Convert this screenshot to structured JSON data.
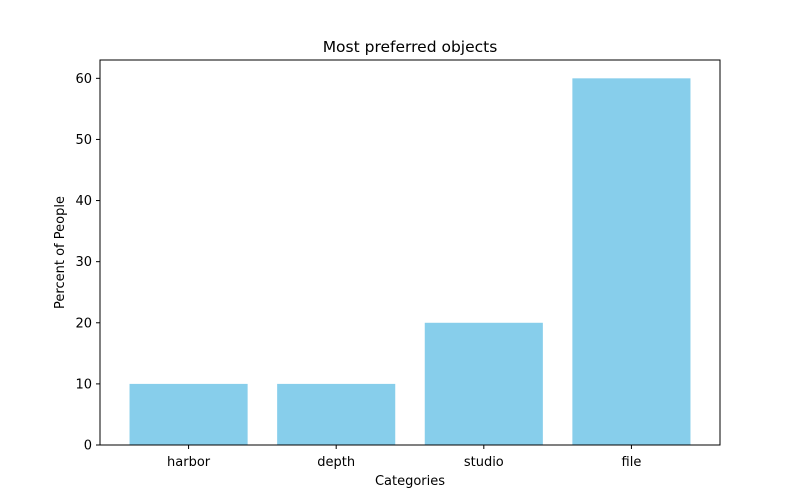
{
  "chart_data": {
    "type": "bar",
    "title": "Most preferred objects",
    "xlabel": "Categories",
    "ylabel": "Percent of People",
    "categories": [
      "harbor",
      "depth",
      "studio",
      "file"
    ],
    "values": [
      10,
      10,
      20,
      60
    ],
    "ylim": [
      0,
      63
    ],
    "yticks": [
      0,
      10,
      20,
      30,
      40,
      50,
      60
    ],
    "grid": false,
    "legend": "none",
    "bar_color": "#87ceeb"
  }
}
